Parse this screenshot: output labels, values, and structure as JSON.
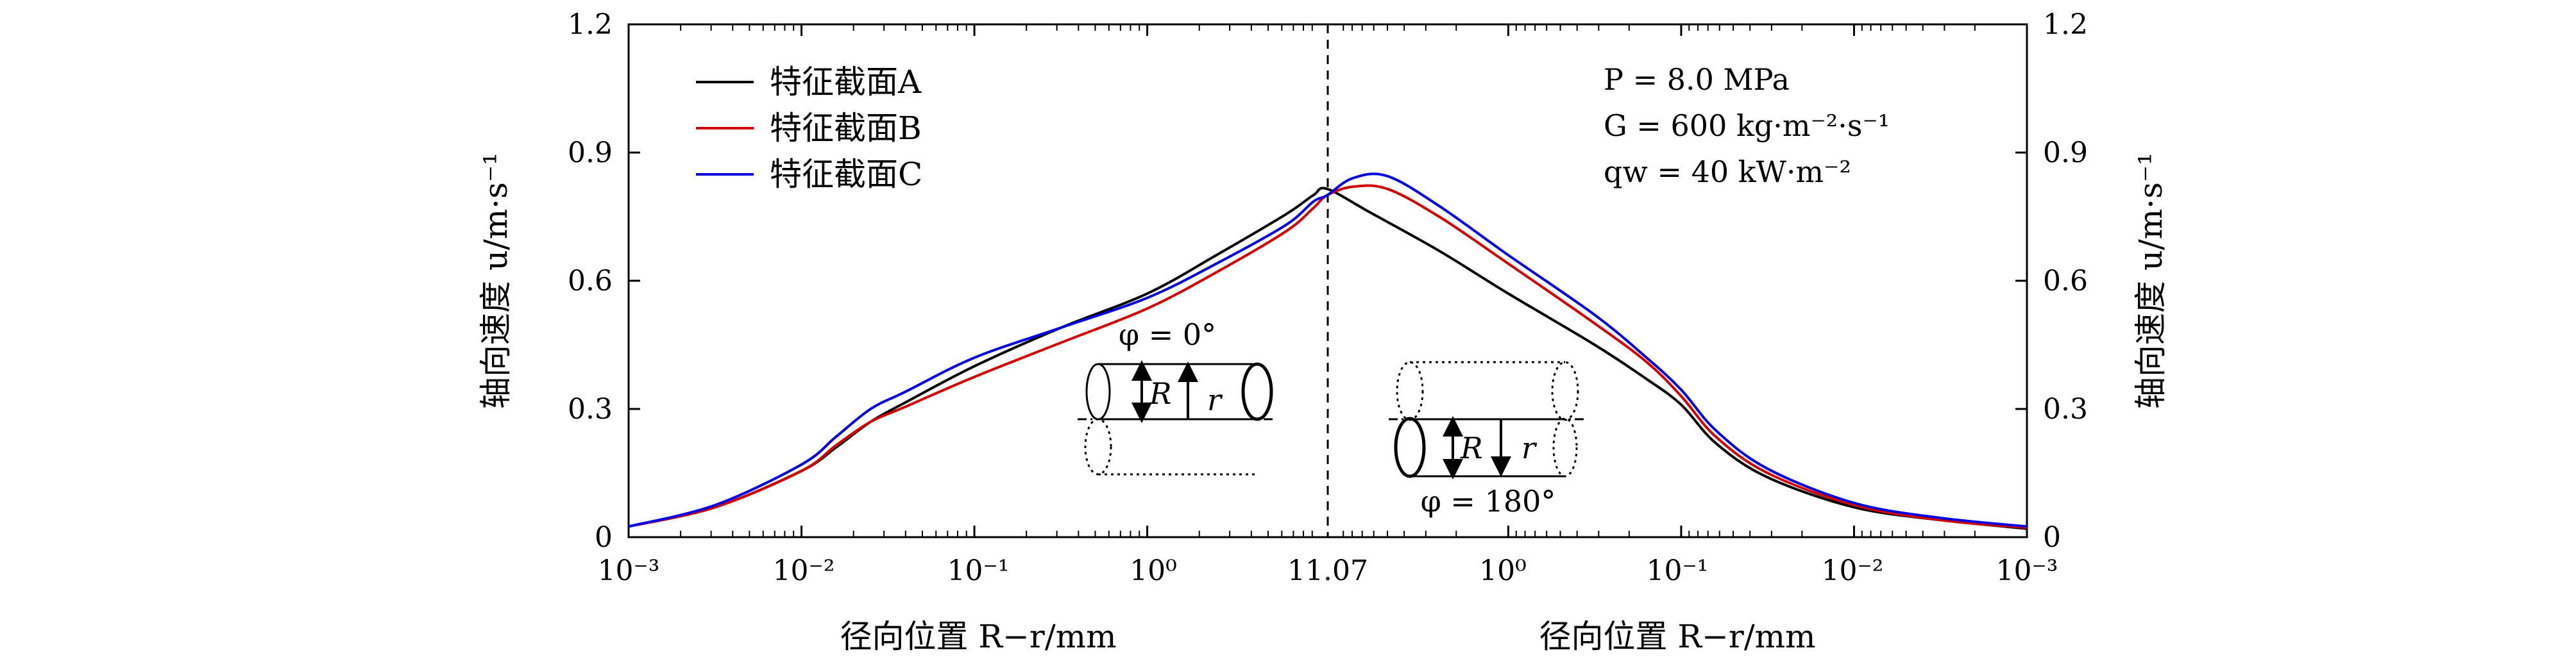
{
  "chart_data": {
    "type": "line",
    "title": "",
    "conditions": {
      "line1": "P = 8.0 MPa",
      "line2": "G = 600 kg·m⁻²·s⁻¹",
      "line3": "qw = 40 kW·m⁻²"
    },
    "xlabel": "径向位置 R−r/mm",
    "ylabel": "轴向速度 u/m·s⁻¹",
    "ylim": [
      0,
      1.2
    ],
    "yticks": [
      "0",
      "0.3",
      "0.6",
      "0.9",
      "1.2"
    ],
    "xticks": [
      "10⁻³",
      "10⁻²",
      "10⁻¹",
      "10⁰",
      "11.07",
      "10⁰",
      "10⁻¹",
      "10⁻²",
      "10⁻³"
    ],
    "x_scale": "log distance from wall (mm); left half φ = 0°, right half φ = 180°, centre = 11.07 mm",
    "center_label": "11.07",
    "inset_top": {
      "angle": "φ = 0°",
      "R": "R",
      "r": "r"
    },
    "inset_bottom": {
      "angle": "φ = 180°",
      "R": "R",
      "r": "r"
    },
    "series": [
      {
        "name": "特征截面A",
        "color": "#000000",
        "left": [
          [
            -3,
            0.025
          ],
          [
            -2.5,
            0.07
          ],
          [
            -2,
            0.155
          ],
          [
            -1.8,
            0.21
          ],
          [
            -1.6,
            0.27
          ],
          [
            -1.4,
            0.315
          ],
          [
            -1,
            0.4
          ],
          [
            -0.5,
            0.49
          ],
          [
            0,
            0.57
          ],
          [
            0.4,
            0.66
          ],
          [
            0.8,
            0.755
          ],
          [
            0.96,
            0.8
          ],
          [
            1.04,
            0.815
          ]
        ],
        "right": [
          [
            1.04,
            0.815
          ],
          [
            0.8,
            0.76
          ],
          [
            0.4,
            0.67
          ],
          [
            0,
            0.57
          ],
          [
            -0.5,
            0.45
          ],
          [
            -0.8,
            0.37
          ],
          [
            -1,
            0.31
          ],
          [
            -1.2,
            0.22
          ],
          [
            -1.5,
            0.14
          ],
          [
            -2,
            0.07
          ],
          [
            -2.5,
            0.04
          ],
          [
            -3,
            0.02
          ]
        ]
      },
      {
        "name": "特征截面B",
        "color": "#d40000",
        "left": [
          [
            -3,
            0.025
          ],
          [
            -2.5,
            0.07
          ],
          [
            -2,
            0.155
          ],
          [
            -1.8,
            0.215
          ],
          [
            -1.6,
            0.27
          ],
          [
            -1.4,
            0.305
          ],
          [
            -1,
            0.375
          ],
          [
            -0.5,
            0.455
          ],
          [
            0,
            0.535
          ],
          [
            0.4,
            0.62
          ],
          [
            0.8,
            0.715
          ],
          [
            0.96,
            0.77
          ],
          [
            1.04,
            0.8
          ]
        ],
        "right": [
          [
            1.04,
            0.8
          ],
          [
            0.9,
            0.82
          ],
          [
            0.7,
            0.815
          ],
          [
            0.4,
            0.75
          ],
          [
            0,
            0.64
          ],
          [
            -0.5,
            0.5
          ],
          [
            -0.8,
            0.41
          ],
          [
            -1,
            0.33
          ],
          [
            -1.2,
            0.235
          ],
          [
            -1.5,
            0.15
          ],
          [
            -2,
            0.075
          ],
          [
            -2.5,
            0.04
          ],
          [
            -3,
            0.022
          ]
        ]
      },
      {
        "name": "特征截面C",
        "color": "#0000e0",
        "left": [
          [
            -3,
            0.025
          ],
          [
            -2.5,
            0.075
          ],
          [
            -2,
            0.17
          ],
          [
            -1.8,
            0.235
          ],
          [
            -1.6,
            0.3
          ],
          [
            -1.4,
            0.34
          ],
          [
            -1,
            0.42
          ],
          [
            -0.5,
            0.49
          ],
          [
            0,
            0.56
          ],
          [
            0.4,
            0.64
          ],
          [
            0.8,
            0.73
          ],
          [
            0.96,
            0.785
          ],
          [
            1.04,
            0.8
          ]
        ],
        "right": [
          [
            1.04,
            0.8
          ],
          [
            0.9,
            0.84
          ],
          [
            0.7,
            0.845
          ],
          [
            0.4,
            0.775
          ],
          [
            0,
            0.66
          ],
          [
            -0.5,
            0.52
          ],
          [
            -0.8,
            0.42
          ],
          [
            -1,
            0.345
          ],
          [
            -1.2,
            0.25
          ],
          [
            -1.5,
            0.16
          ],
          [
            -2,
            0.08
          ],
          [
            -2.5,
            0.045
          ],
          [
            -3,
            0.025
          ]
        ]
      }
    ]
  }
}
